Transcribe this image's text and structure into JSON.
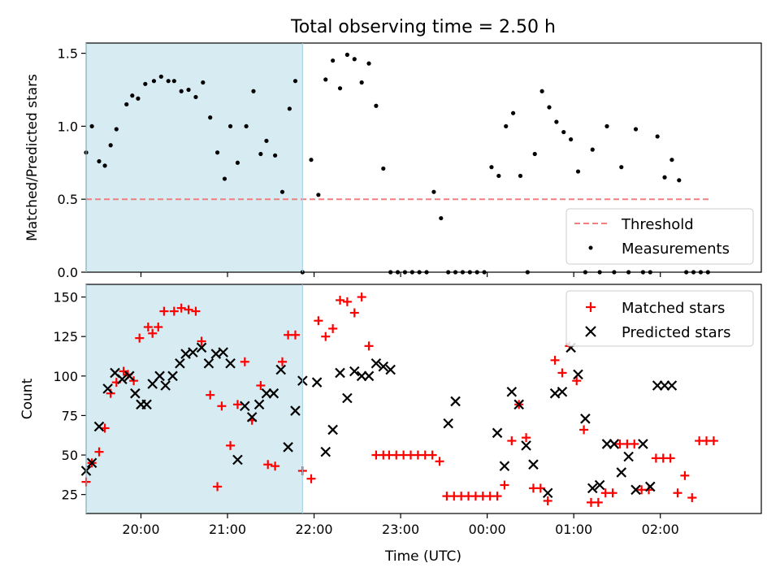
{
  "colors": {
    "shade": "#add8e6",
    "threshold": "#f08080",
    "measurement": "#000000",
    "matched": "#ff0000",
    "predicted": "#000000"
  },
  "chart_data": [
    {
      "type": "scatter",
      "title": "Total observing time = 2.50 h",
      "xlabel": "",
      "ylabel": "Matched/Predicted stars",
      "xlim": [
        "19:22",
        "03:10"
      ],
      "ylim": [
        0,
        1.57
      ],
      "yticks": [
        0,
        0.5,
        1.0,
        1.5
      ],
      "ytick_labels": [
        "0.0",
        "0.5",
        "1.0",
        "1.5"
      ],
      "shaded_interval": [
        "19:22",
        "21:52"
      ],
      "legend": {
        "placement": "lower right",
        "entries": [
          "Threshold",
          "Measurements"
        ]
      },
      "series": [
        {
          "name": "Threshold",
          "kind": "dashed-line",
          "x": [
            "19:22",
            "02:35"
          ],
          "values": [
            0.5,
            0.5
          ]
        },
        {
          "name": "Measurements",
          "kind": "points",
          "x": [
            "19:22",
            "19:26",
            "19:31",
            "19:35",
            "19:39",
            "19:43",
            "19:50",
            "19:54",
            "19:58",
            "20:03",
            "20:09",
            "20:14",
            "20:19",
            "20:23",
            "20:28",
            "20:33",
            "20:38",
            "20:43",
            "20:48",
            "20:53",
            "20:58",
            "21:02",
            "21:07",
            "21:13",
            "21:18",
            "21:23",
            "21:27",
            "21:33",
            "21:38",
            "21:43",
            "21:47",
            "21:52",
            "21:58",
            "22:03",
            "22:08",
            "22:13",
            "22:18",
            "22:23",
            "22:28",
            "22:33",
            "22:38",
            "22:43",
            "22:48",
            "22:53",
            "22:58",
            "23:03",
            "23:08",
            "23:13",
            "23:18",
            "23:23",
            "23:28",
            "23:33",
            "23:38",
            "23:43",
            "23:48",
            "23:53",
            "23:58",
            "00:03",
            "00:08",
            "00:13",
            "00:18",
            "00:23",
            "00:28",
            "00:33",
            "00:38",
            "00:43",
            "00:48",
            "00:53",
            "00:58",
            "01:03",
            "01:08",
            "01:13",
            "01:18",
            "01:23",
            "01:28",
            "01:33",
            "01:38",
            "01:43",
            "01:48",
            "01:53",
            "01:58",
            "02:03",
            "02:08",
            "02:13",
            "02:18",
            "02:23",
            "02:28",
            "02:33"
          ],
          "values": [
            0.82,
            1.0,
            0.76,
            0.73,
            0.87,
            0.98,
            1.15,
            1.21,
            1.19,
            1.29,
            1.31,
            1.34,
            1.31,
            1.31,
            1.24,
            1.25,
            1.2,
            1.3,
            1.06,
            0.82,
            0.64,
            1.0,
            0.75,
            1.0,
            1.24,
            0.81,
            0.9,
            0.8,
            0.55,
            1.12,
            1.31,
            0.0,
            0.77,
            0.53,
            1.32,
            1.45,
            1.26,
            1.49,
            1.46,
            1.3,
            1.43,
            1.14,
            0.71,
            0.0,
            0.0,
            0.0,
            0.0,
            0.0,
            0.0,
            0.55,
            0.37,
            0.0,
            0.0,
            0.0,
            0.0,
            0.0,
            0.0,
            0.72,
            0.66,
            1.0,
            1.09,
            0.66,
            0.0,
            0.81,
            1.24,
            1.13,
            1.03,
            0.96,
            0.91,
            0.69,
            0.0,
            0.84,
            0.0,
            1.0,
            0.0,
            0.72,
            0.0,
            0.98,
            0.0,
            0.0,
            0.93,
            0.65,
            0.77,
            0.63,
            0.0,
            0.0,
            0.0,
            0.0
          ]
        }
      ]
    },
    {
      "type": "scatter",
      "title": "",
      "xlabel": "Time (UTC)",
      "ylabel": "Count",
      "xlim": [
        "19:22",
        "03:10"
      ],
      "ylim": [
        13,
        158
      ],
      "yticks": [
        25,
        50,
        75,
        100,
        125,
        150
      ],
      "ytick_labels": [
        "25",
        "50",
        "75",
        "100",
        "125",
        "150"
      ],
      "xticks": [
        "20:00",
        "21:00",
        "22:00",
        "23:00",
        "00:00",
        "01:00",
        "02:00"
      ],
      "shaded_interval": [
        "19:22",
        "21:52"
      ],
      "legend": {
        "placement": "upper right",
        "entries": [
          "Matched stars",
          "Predicted stars"
        ]
      },
      "series": [
        {
          "name": "Matched stars",
          "kind": "plus",
          "x": [
            "19:22",
            "19:26",
            "19:31",
            "19:35",
            "19:39",
            "19:43",
            "19:48",
            "19:51",
            "19:55",
            "19:59",
            "20:05",
            "20:08",
            "20:12",
            "20:16",
            "20:23",
            "20:28",
            "20:33",
            "20:38",
            "20:42",
            "20:48",
            "20:53",
            "20:56",
            "21:02",
            "21:07",
            "21:12",
            "21:17",
            "21:23",
            "21:28",
            "21:33",
            "21:38",
            "21:42",
            "21:47",
            "21:52",
            "21:58",
            "22:03",
            "22:08",
            "22:13",
            "22:18",
            "22:23",
            "22:28",
            "22:33",
            "22:38",
            "22:43",
            "22:48",
            "22:52",
            "22:57",
            "23:02",
            "23:07",
            "23:12",
            "23:17",
            "23:22",
            "23:27",
            "23:32",
            "23:37",
            "23:42",
            "23:47",
            "23:52",
            "23:57",
            "00:02",
            "00:07",
            "00:12",
            "00:17",
            "00:22",
            "00:27",
            "00:32",
            "00:37",
            "00:42",
            "00:47",
            "00:52",
            "00:57",
            "01:02",
            "01:07",
            "01:12",
            "01:17",
            "01:22",
            "01:27",
            "01:32",
            "01:37",
            "01:42",
            "01:47",
            "01:52",
            "01:57",
            "02:02",
            "02:07",
            "02:12",
            "02:17",
            "02:22",
            "02:27",
            "02:32",
            "02:37"
          ],
          "values": [
            33,
            45,
            52,
            67,
            89,
            96,
            103,
            101,
            97,
            124,
            131,
            127,
            131,
            141,
            141,
            143,
            142,
            141,
            122,
            88,
            30,
            81,
            56,
            82,
            109,
            72,
            94,
            44,
            43,
            109,
            126,
            126,
            40,
            35,
            135,
            125,
            130,
            148,
            147,
            140,
            150,
            119,
            50,
            50,
            50,
            50,
            50,
            50,
            50,
            50,
            50,
            46,
            24,
            24,
            24,
            24,
            24,
            24,
            24,
            24,
            31,
            59,
            82,
            61,
            29,
            29,
            21,
            110,
            102,
            119,
            97,
            66,
            20,
            20,
            26,
            26,
            57,
            57,
            57,
            28,
            28,
            48,
            48,
            48,
            26,
            37,
            23,
            59,
            59,
            59
          ]
        },
        {
          "name": "Predicted stars",
          "kind": "cross",
          "x": [
            "19:22",
            "19:26",
            "19:31",
            "19:37",
            "19:42",
            "19:47",
            "19:52",
            "19:56",
            "20:00",
            "20:04",
            "20:08",
            "20:13",
            "20:17",
            "20:22",
            "20:27",
            "20:31",
            "20:36",
            "20:42",
            "20:47",
            "20:52",
            "20:57",
            "21:02",
            "21:07",
            "21:12",
            "21:17",
            "21:22",
            "21:27",
            "21:32",
            "21:37",
            "21:42",
            "21:47",
            "21:52",
            "22:02",
            "22:08",
            "22:13",
            "22:18",
            "22:23",
            "22:28",
            "22:33",
            "22:38",
            "22:43",
            "22:48",
            "22:53",
            "23:33",
            "23:38",
            "00:07",
            "00:12",
            "00:17",
            "00:22",
            "00:27",
            "00:32",
            "00:42",
            "00:47",
            "00:52",
            "00:58",
            "01:03",
            "01:08",
            "01:13",
            "01:18",
            "01:23",
            "01:28",
            "01:33",
            "01:38",
            "01:43",
            "01:48",
            "01:53",
            "01:58",
            "02:03",
            "02:08"
          ],
          "values": [
            40,
            45,
            68,
            92,
            102,
            98,
            100,
            89,
            82,
            82,
            95,
            100,
            94,
            100,
            108,
            114,
            115,
            118,
            108,
            114,
            115,
            108,
            47,
            81,
            74,
            82,
            89,
            89,
            104,
            55,
            78,
            97,
            96,
            52,
            66,
            102,
            86,
            103,
            100,
            100,
            108,
            106,
            104,
            70,
            84,
            64,
            43,
            90,
            82,
            56,
            44,
            26,
            89,
            90,
            118,
            101,
            73,
            29,
            31,
            57,
            57,
            39,
            49,
            28,
            57,
            30,
            94,
            94,
            94
          ]
        }
      ]
    }
  ]
}
